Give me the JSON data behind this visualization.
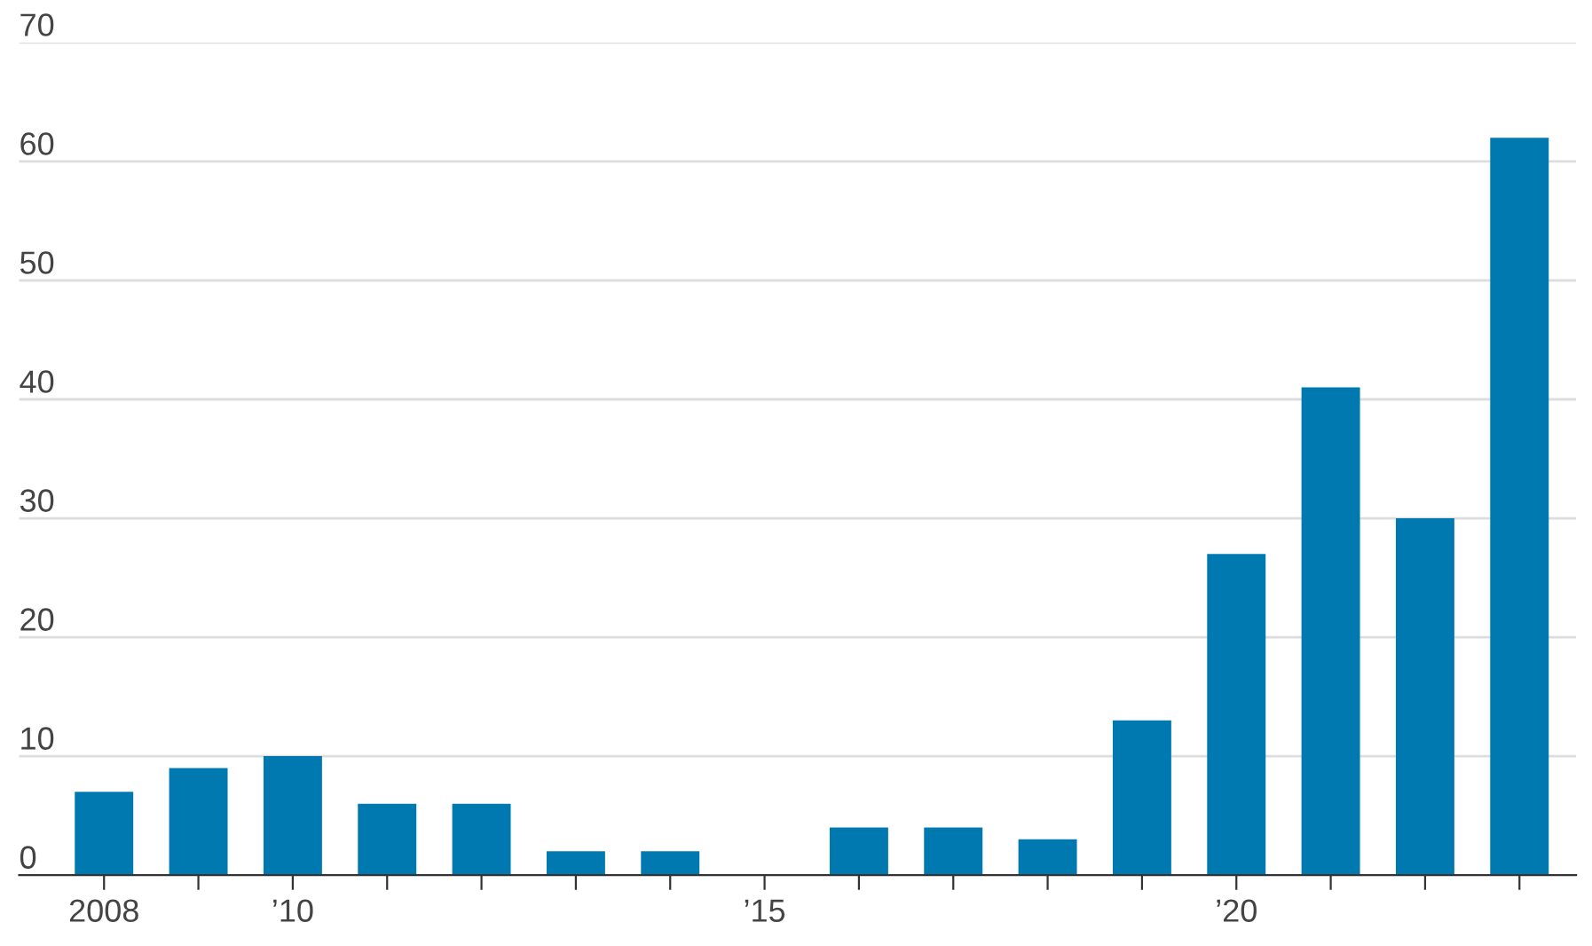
{
  "chart_data": {
    "type": "bar",
    "categories": [
      "2008",
      null,
      "’10",
      null,
      null,
      null,
      null,
      "’15",
      null,
      null,
      null,
      null,
      "’20",
      null,
      null,
      null
    ],
    "values": [
      7,
      9,
      10,
      6,
      6,
      2,
      2,
      0,
      4,
      4,
      3,
      13,
      27,
      41,
      30,
      62
    ],
    "color": "#0079b1",
    "ylim": [
      0,
      70
    ],
    "yticks": [
      0,
      10,
      20,
      30,
      40,
      50,
      60,
      70
    ],
    "grid": "y"
  }
}
